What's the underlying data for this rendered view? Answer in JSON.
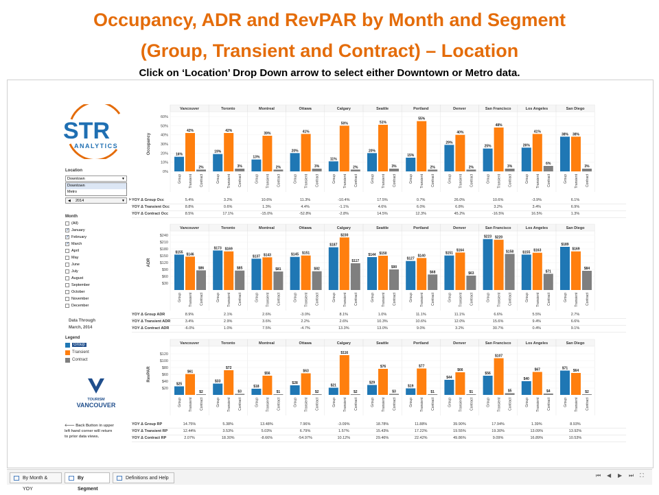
{
  "title_line1": "Occupancy, ADR and RevPAR by Month and Segment",
  "title_line2": "(Group, Transient and Contract) – Location",
  "instruction": "Click on ‘Location’ Drop Down arrow to select either Downtown or Metro data.",
  "logo": {
    "brand": "STR",
    "sub": "ANALYTICS",
    "color": "#1f6fb2",
    "accent": "#e46c0a"
  },
  "filters": {
    "location_label": "Location",
    "location_value": "Downtown",
    "location_options": [
      "Downtown",
      "Metro"
    ],
    "year_value": "2014",
    "month_label": "Month",
    "months": [
      {
        "name": "(All)",
        "checked": false
      },
      {
        "name": "January",
        "checked": true
      },
      {
        "name": "February",
        "checked": true
      },
      {
        "name": "March",
        "checked": true
      },
      {
        "name": "April",
        "checked": false
      },
      {
        "name": "May",
        "checked": false
      },
      {
        "name": "June",
        "checked": false
      },
      {
        "name": "July",
        "checked": false
      },
      {
        "name": "August",
        "checked": false
      },
      {
        "name": "September",
        "checked": false
      },
      {
        "name": "October",
        "checked": false
      },
      {
        "name": "November",
        "checked": false
      },
      {
        "name": "December",
        "checked": false
      }
    ],
    "data_through_label": "Data Through",
    "data_through_value": "March, 2014",
    "legend_label": "Legend",
    "legend_items": [
      {
        "name": "Group",
        "color": "#1f77b4"
      },
      {
        "name": "Transient",
        "color": "#ff7f0e"
      },
      {
        "name": "Contract",
        "color": "#7f7f7f"
      }
    ]
  },
  "tourism_logo": {
    "line1": "TOURISM",
    "line2": "VANCOUVER",
    "color": "#1f4e8c"
  },
  "back_note": [
    "Back Button in upper",
    "left hand corner will return",
    "to prior data views."
  ],
  "tabs": [
    {
      "label": "By Month & YOY",
      "active": false
    },
    {
      "label": "By Segment",
      "active": true
    },
    {
      "label": "Definitions and Help",
      "active": false
    }
  ],
  "nav": {
    "first": "⏮",
    "prev": "◀",
    "next": "▶",
    "last": "⏭",
    "fullscreen": "⛶"
  },
  "cities": [
    "Vancouver",
    "Toronto",
    "Montreal",
    "Ottawa",
    "Calgary",
    "Seattle",
    "Portland",
    "Denver",
    "San Francisco",
    "Los Angeles",
    "San Diego"
  ],
  "segments": [
    "Group",
    "Transient",
    "Contract"
  ],
  "chart_data": [
    {
      "type": "bar",
      "metric": "Occupancy",
      "ylabel": "Occupancy",
      "yticks": [
        "60%",
        "50%",
        "40%",
        "30%",
        "20%",
        "10%",
        "0%"
      ],
      "ylim": [
        0,
        60
      ],
      "group": [
        16,
        19,
        13,
        20,
        11,
        20,
        15,
        29,
        25,
        26,
        38
      ],
      "transient": [
        42,
        42,
        39,
        41,
        50,
        51,
        55,
        40,
        48,
        41,
        38
      ],
      "contract": [
        2,
        3,
        2,
        3,
        2,
        3,
        2,
        2,
        3,
        6,
        3
      ],
      "labels": {
        "group": [
          "16%",
          "19%",
          "13%",
          "20%",
          "11%",
          "20%",
          "15%",
          "29%",
          "25%",
          "26%",
          "38%"
        ],
        "transient": [
          "42%",
          "42%",
          "39%",
          "41%",
          "50%",
          "51%",
          "55%",
          "40%",
          "48%",
          "41%",
          "38%"
        ],
        "contract": [
          "2%",
          "3%",
          "2%",
          "3%",
          "2%",
          "3%",
          "2%",
          "2%",
          "3%",
          "6%",
          "3%"
        ]
      }
    },
    {
      "type": "bar",
      "metric": "ADR",
      "ylabel": "ADR",
      "yticks": [
        "$240",
        "$210",
        "$180",
        "$150",
        "$120",
        "$90",
        "$60",
        "$30"
      ],
      "ylim": [
        0,
        240
      ],
      "group": [
        155,
        173,
        137,
        145,
        187,
        144,
        127,
        151,
        223,
        155,
        189
      ],
      "transient": [
        146,
        169,
        143,
        151,
        230,
        150,
        140,
        164,
        220,
        163,
        169
      ],
      "contract": [
        86,
        85,
        81,
        82,
        117,
        90,
        68,
        63,
        158,
        71,
        84
      ],
      "labels": {
        "group": [
          "$155",
          "$173",
          "$137",
          "$145",
          "$187",
          "$144",
          "$127",
          "$151",
          "$223",
          "$155",
          "$189"
        ],
        "transient": [
          "$146",
          "$169",
          "$143",
          "$151",
          "$230",
          "$150",
          "$140",
          "$164",
          "$220",
          "$163",
          "$169"
        ],
        "contract": [
          "$86",
          "$85",
          "$81",
          "$82",
          "$117",
          "$90",
          "$68",
          "$63",
          "$158",
          "$71",
          "$84"
        ]
      }
    },
    {
      "type": "bar",
      "metric": "RevPAR",
      "ylabel": "RevPAR",
      "yticks": [
        "$120",
        "$100",
        "$80",
        "$60",
        "$40",
        "$20"
      ],
      "ylim": [
        0,
        120
      ],
      "group": [
        25,
        33,
        18,
        28,
        21,
        29,
        19,
        44,
        56,
        40,
        71
      ],
      "transient": [
        61,
        72,
        56,
        63,
        116,
        76,
        77,
        66,
        107,
        67,
        64
      ],
      "contract": [
        2,
        3,
        1,
        2,
        2,
        3,
        1,
        1,
        5,
        4,
        2
      ],
      "labels": {
        "group": [
          "$25",
          "$33",
          "$18",
          "$28",
          "$21",
          "$29",
          "$19",
          "$44",
          "$56",
          "$40",
          "$71"
        ],
        "transient": [
          "$61",
          "$72",
          "$56",
          "$63",
          "$116",
          "$76",
          "$77",
          "$66",
          "$107",
          "$67",
          "$64"
        ],
        "contract": [
          "$2",
          "$3",
          "$1",
          "$2",
          "$2",
          "$3",
          "$1",
          "$1",
          "$5",
          "$4",
          "$2"
        ]
      }
    }
  ],
  "yoy_tables": [
    {
      "rows": [
        {
          "label": "YOY Δ Group Occ",
          "values": [
            "5.4%",
            "3.2%",
            "10.6%",
            "11.3%",
            "-10.4%",
            "17.5%",
            "0.7%",
            "26.0%",
            "10.6%",
            "-3.9%",
            "6.1%"
          ]
        },
        {
          "label": "YOY Δ Transient Occ",
          "values": [
            "8.8%",
            "0.6%",
            "1.3%",
            "4.4%",
            "-1.1%",
            "4.6%",
            "6.0%",
            "6.8%",
            "3.2%",
            "3.4%",
            "6.9%"
          ]
        },
        {
          "label": "YOY Δ Contract Occ",
          "values": [
            "8.5%",
            "17.1%",
            "-15.0%",
            "-52.8%",
            "-2.8%",
            "14.5%",
            "12.3%",
            "45.2%",
            "-16.5%",
            "16.5%",
            "1.3%"
          ]
        }
      ]
    },
    {
      "rows": [
        {
          "label": "YOY Δ Group ADR",
          "values": [
            "8.9%",
            "2.1%",
            "2.6%",
            "-3.0%",
            "8.1%",
            "1.0%",
            "11.1%",
            "11.1%",
            "6.6%",
            "5.5%",
            "2.7%"
          ]
        },
        {
          "label": "YOY Δ Transient ADR",
          "values": [
            "3.4%",
            "2.9%",
            "3.6%",
            "2.2%",
            "2.6%",
            "10.3%",
            "10.6%",
            "12.0%",
            "15.6%",
            "9.4%",
            "6.6%"
          ]
        },
        {
          "label": "YOY Δ Contract ADR",
          "values": [
            "-6.0%",
            "1.0%",
            "7.5%",
            "-4.7%",
            "13.3%",
            "13.0%",
            "9.0%",
            "3.2%",
            "30.7%",
            "0.4%",
            "9.1%"
          ]
        }
      ]
    },
    {
      "rows": [
        {
          "label": "YOY Δ Group RP",
          "values": [
            "14.75%",
            "5.38%",
            "13.48%",
            "7.96%",
            "-3.09%",
            "18.78%",
            "11.88%",
            "39.90%",
            "17.94%",
            "1.39%",
            "8.93%"
          ]
        },
        {
          "label": "YOY Δ Transient RP",
          "values": [
            "12.44%",
            "3.53%",
            "5.03%",
            "6.79%",
            "1.57%",
            "15.43%",
            "17.22%",
            "19.55%",
            "19.30%",
            "13.09%",
            "13.92%"
          ]
        },
        {
          "label": "YOY Δ Contract RP",
          "values": [
            "2.07%",
            "18.30%",
            "-8.66%",
            "-54.97%",
            "10.12%",
            "29.46%",
            "22.42%",
            "49.86%",
            "9.09%",
            "16.89%",
            "10.53%"
          ]
        }
      ]
    }
  ]
}
